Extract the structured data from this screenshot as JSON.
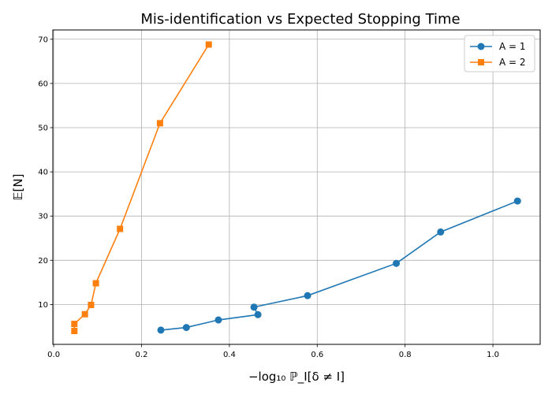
{
  "chart_data": {
    "type": "line",
    "title": "Mis-identification vs Expected Stopping Time",
    "xlabel": "−log₁₀ ℙ_I[δ ≠ I]",
    "ylabel": "𝔼[N]",
    "xlim": [
      -0.002,
      1.1076
    ],
    "ylim": [
      0.98,
      72.1
    ],
    "xticks": [
      0.0,
      0.2,
      0.4,
      0.6,
      0.8,
      1.0
    ],
    "xtick_labels": [
      "0.0",
      "0.2",
      "0.4",
      "0.6",
      "0.8",
      "1.0"
    ],
    "yticks": [
      10,
      20,
      30,
      40,
      50,
      60,
      70
    ],
    "ytick_labels": [
      "10",
      "20",
      "30",
      "40",
      "50",
      "60",
      "70"
    ],
    "grid": true,
    "legend_position": "upper-right",
    "series": [
      {
        "name": "A = 1",
        "color": "#1f77b4",
        "marker": "circle",
        "x": [
          0.244,
          0.302,
          0.375,
          0.465,
          0.456,
          0.578,
          0.78,
          0.881,
          1.056
        ],
        "y": [
          4.2,
          4.8,
          6.5,
          7.7,
          9.4,
          12.0,
          19.3,
          26.4,
          33.4
        ]
      },
      {
        "name": "A = 2",
        "color": "#ff7f0e",
        "marker": "square",
        "x": [
          0.047,
          0.047,
          0.071,
          0.085,
          0.096,
          0.151,
          0.242,
          0.353
        ],
        "y": [
          4.0,
          5.6,
          7.8,
          9.9,
          14.8,
          27.1,
          51.0,
          68.8
        ]
      }
    ]
  }
}
